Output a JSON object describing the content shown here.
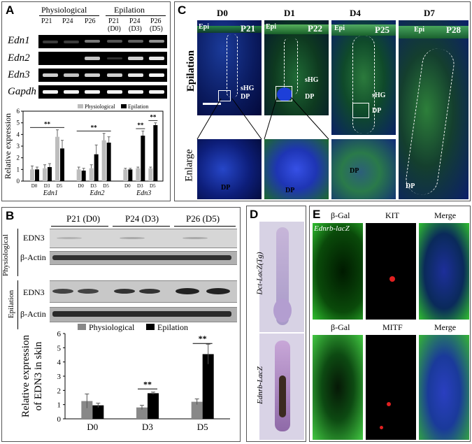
{
  "panel_a": {
    "label": "A",
    "group_physiological": "Physiological",
    "group_epilation": "Epilation",
    "lanes": [
      {
        "top": "P21",
        "bottom": ""
      },
      {
        "top": "P24",
        "bottom": ""
      },
      {
        "top": "P26",
        "bottom": ""
      },
      {
        "top": "P21",
        "bottom": "(D0)"
      },
      {
        "top": "P24",
        "bottom": "(D3)"
      },
      {
        "top": "P26",
        "bottom": "(D5)"
      }
    ],
    "genes": [
      "Edn1",
      "Edn2",
      "Edn3",
      "Gapdh"
    ]
  },
  "panel_b": {
    "label": "B",
    "timepoints": [
      "P21 (D0)",
      "P24 (D3)",
      "P26 (D5)"
    ],
    "group_physiological": "Physiological",
    "group_epilation": "Epilation",
    "protein": "EDN3",
    "loading": "β-Actin"
  },
  "panel_c": {
    "label": "C",
    "days": [
      "D0",
      "D1",
      "D4",
      "D7"
    ],
    "ages": [
      "P21",
      "P22",
      "P25",
      "P28"
    ],
    "row_epilation": "Epilation",
    "row_enlarge": "Enlarge",
    "epi": "Epi",
    "shg": "sHG",
    "dp": "DP"
  },
  "panel_d": {
    "label": "D",
    "top_label": "Dct-LacZ(Tg)",
    "bottom_label": "Ednrb-LacZ"
  },
  "panel_e": {
    "label": "E",
    "top_cols": [
      "β-Gal",
      "KIT",
      "Merge"
    ],
    "bottom_cols": [
      "β-Gal",
      "MITF",
      "Merge"
    ],
    "strain": "Ednrb-lacZ"
  },
  "chart_data": [
    {
      "type": "bar",
      "panel": "A",
      "ylabel": "Relative expression",
      "ylim": [
        0,
        6
      ],
      "yticks": [
        0,
        1,
        2,
        3,
        4,
        5,
        6
      ],
      "legend": [
        "Physiological",
        "Epilation"
      ],
      "legend_position": "top-right",
      "groups": [
        "Edn1",
        "Edn2",
        "Edn3"
      ],
      "categories": [
        "D0",
        "D3",
        "D5"
      ],
      "series": [
        {
          "name": "Physiological",
          "color": "#bdbdbd",
          "values": [
            [
              1.0,
              1.1,
              3.8
            ],
            [
              1.0,
              1.1,
              3.5
            ],
            [
              1.0,
              1.1,
              1.1
            ]
          ],
          "errors": [
            [
              0.3,
              0.3,
              0.6
            ],
            [
              0.2,
              0.3,
              0.6
            ],
            [
              0.1,
              0.1,
              0.1
            ]
          ]
        },
        {
          "name": "Epilation",
          "color": "#000000",
          "values": [
            [
              1.0,
              1.2,
              2.8
            ],
            [
              0.9,
              2.3,
              3.3
            ],
            [
              1.0,
              3.9,
              4.8
            ]
          ],
          "errors": [
            [
              0.2,
              0.3,
              0.7
            ],
            [
              0.2,
              0.8,
              0.5
            ],
            [
              0.1,
              0.4,
              0.2
            ]
          ]
        }
      ],
      "annotations": [
        "**",
        "**",
        "**",
        "**"
      ]
    },
    {
      "type": "bar",
      "panel": "B",
      "ylabel": "Relative expression of EDN3 in skin",
      "ylim": [
        0,
        6
      ],
      "yticks": [
        0,
        1,
        2,
        3,
        4,
        5,
        6
      ],
      "legend": [
        "Physiological",
        "Epilation"
      ],
      "legend_position": "top",
      "categories": [
        "D0",
        "D3",
        "D5"
      ],
      "series": [
        {
          "name": "Physiological",
          "color": "#888888",
          "values": [
            1.25,
            0.8,
            1.2
          ],
          "errors": [
            0.5,
            0.15,
            0.2
          ]
        },
        {
          "name": "Epilation",
          "color": "#000000",
          "values": [
            0.95,
            1.8,
            4.55
          ],
          "errors": [
            0.15,
            0.08,
            0.7
          ]
        }
      ],
      "annotations": [
        "**",
        "**"
      ]
    }
  ]
}
